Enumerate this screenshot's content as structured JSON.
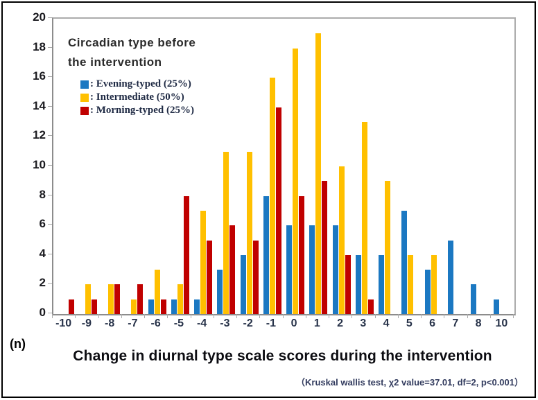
{
  "figure": {
    "background": "#FFFFFF",
    "border_color": "#000000",
    "axis_color": "#ABABAB"
  },
  "chart_data": {
    "type": "bar",
    "categories": [
      "-10",
      "-9",
      "-8",
      "-7",
      "-6",
      "-5",
      "-4",
      "-3",
      "-2",
      "-1",
      "0",
      "1",
      "2",
      "3",
      "4",
      "5",
      "6",
      "7",
      "8",
      "10"
    ],
    "series": [
      {
        "name": "Evening-typed (25%)",
        "color": "#1B78C2",
        "values": [
          0,
          0,
          0,
          0,
          1,
          1,
          1,
          3,
          4,
          8,
          6,
          6,
          6,
          4,
          4,
          7,
          3,
          5,
          2,
          1
        ]
      },
      {
        "name": "Intermediate (50%)",
        "color": "#FFC000",
        "values": [
          0,
          2,
          2,
          1,
          3,
          2,
          7,
          11,
          11,
          16,
          18,
          19,
          10,
          13,
          9,
          4,
          4,
          0,
          0,
          0
        ]
      },
      {
        "name": "Morning-typed (25%)",
        "color": "#C00000",
        "values": [
          1,
          1,
          2,
          2,
          1,
          8,
          5,
          6,
          5,
          14,
          8,
          9,
          4,
          1,
          0,
          0,
          0,
          0,
          0,
          0
        ]
      }
    ],
    "ylim": [
      0,
      20
    ],
    "ytick_step": 2,
    "ylabel": "(n)",
    "xlabel": "Change in diurnal type scale scores during the intervention",
    "footnote": "（Kruskal wallis test, χ2 value=37.01, df=2, p<0.001）",
    "grid": false,
    "legend": {
      "position": "top-left",
      "title_line1": "Circadian type before",
      "title_line2": "the intervention",
      "separator": " : "
    }
  }
}
